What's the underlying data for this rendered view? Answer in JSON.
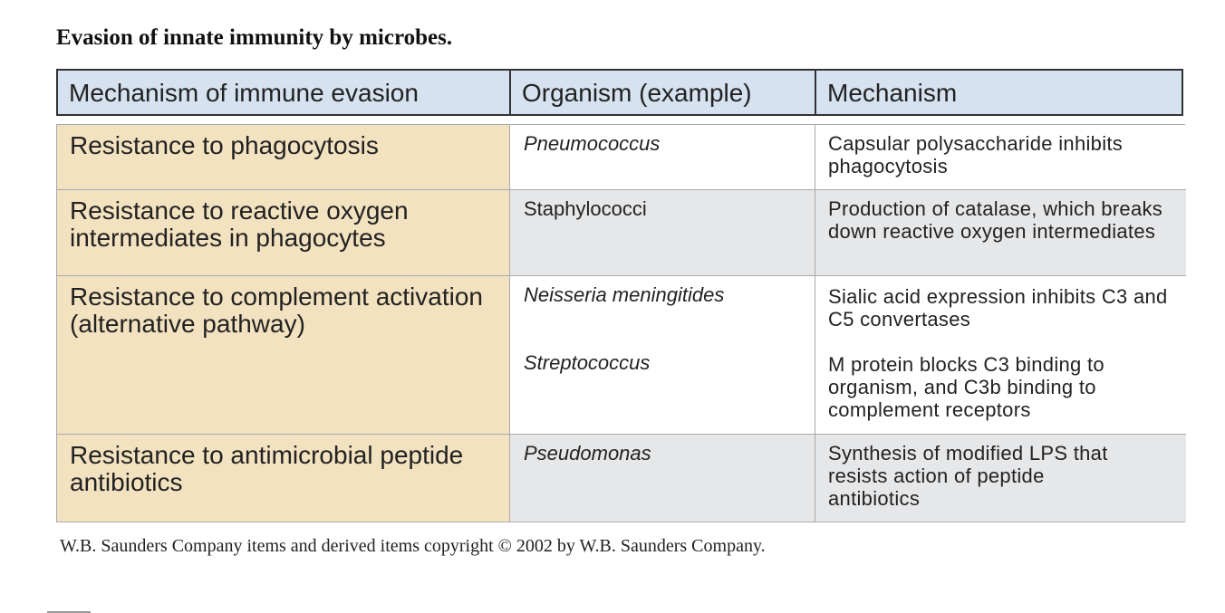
{
  "title": "Evasion of innate immunity by microbes.",
  "table": {
    "headers": [
      "Mechanism of immune evasion",
      "Organism (example)",
      "Mechanism"
    ],
    "rows": [
      {
        "evasion": "Resistance to phagocytosis",
        "organisms": [
          "Pneumococcus"
        ],
        "mechanisms": [
          "Capsular polysaccharide inhibits phagocytosis"
        ]
      },
      {
        "evasion": "Resistance to reactive oxygen intermediates in phagocytes",
        "organisms": [
          "Staphylococci"
        ],
        "mechanisms": [
          "Production of catalase, which breaks down reactive oxygen intermediates"
        ]
      },
      {
        "evasion": "Resistance to complement activation (alternative pathway)",
        "organisms": [
          "Neisseria meningitides",
          "Streptococcus"
        ],
        "mechanisms": [
          "Sialic acid expression inhibits C3 and C5 convertases",
          "M protein blocks C3 binding to organism, and C3b binding to complement receptors"
        ]
      },
      {
        "evasion": "Resistance to antimicrobial peptide antibiotics",
        "organisms": [
          "Pseudomonas"
        ],
        "mechanisms": [
          "Synthesis of modified LPS that resists action of peptide antibiotics"
        ]
      }
    ]
  },
  "footer": "W.B. Saunders Company items and derived items copyright © 2002 by W.B. Saunders Company.",
  "colors": {
    "header_bg": "#d6e2f0",
    "first_col_bg": "#f3e2c0",
    "alt_row_bg": "#e6e7e9"
  }
}
